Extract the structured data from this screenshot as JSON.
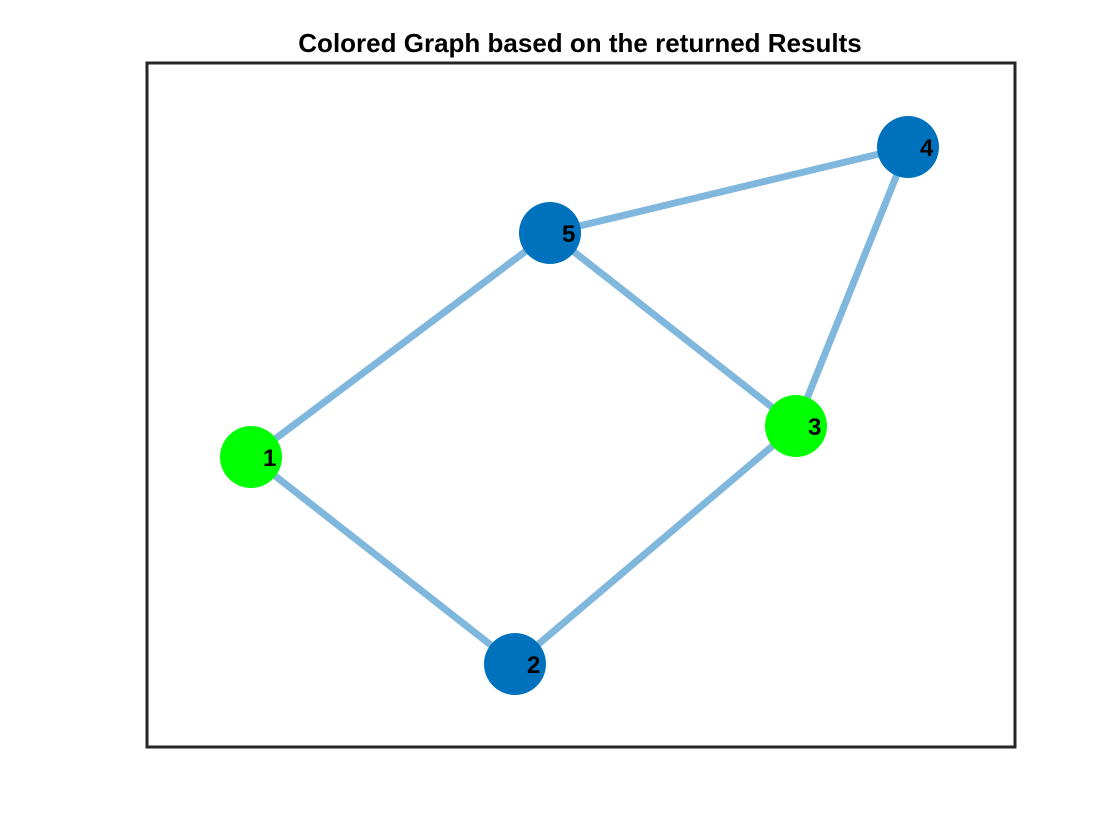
{
  "title": "Colored Graph based on the returned Results",
  "colors": {
    "edge": "#80b7dd",
    "group_green": "#00ff00",
    "group_blue": "#0072bd",
    "axes_border": "#262626"
  },
  "nodes": [
    {
      "id": "1",
      "label": "1",
      "color": "#00ff00"
    },
    {
      "id": "2",
      "label": "2",
      "color": "#0072bd"
    },
    {
      "id": "3",
      "label": "3",
      "color": "#00ff00"
    },
    {
      "id": "4",
      "label": "4",
      "color": "#0072bd"
    },
    {
      "id": "5",
      "label": "5",
      "color": "#0072bd"
    }
  ],
  "edges": [
    [
      "1",
      "2"
    ],
    [
      "1",
      "5"
    ],
    [
      "2",
      "3"
    ],
    [
      "3",
      "5"
    ],
    [
      "3",
      "4"
    ],
    [
      "4",
      "5"
    ]
  ]
}
